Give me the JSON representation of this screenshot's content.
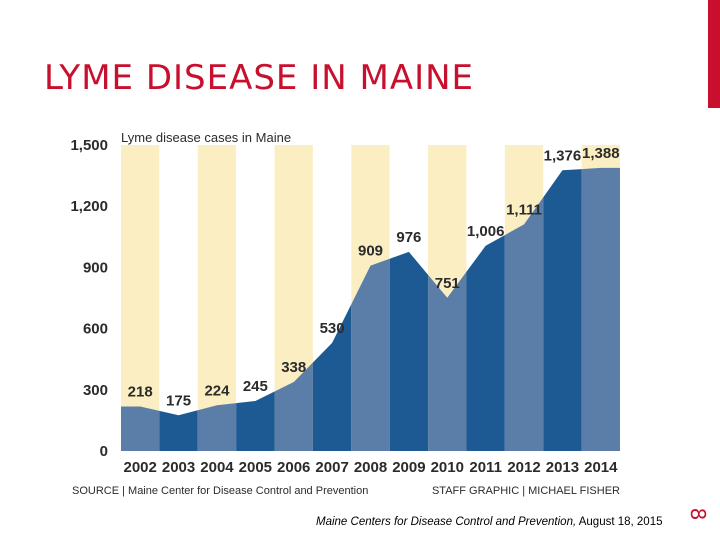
{
  "slide": {
    "title": "LYME DISEASE IN MAINE",
    "caption_source": "Maine Centers for Disease Control and Prevention,",
    "caption_date": " August 18, 2015",
    "slide_number": "8",
    "accent_color": "#c8102e"
  },
  "chart_data": {
    "type": "area",
    "title": "Lyme disease cases in Maine",
    "categories": [
      "2002",
      "2003",
      "2004",
      "2005",
      "2006",
      "2007",
      "2008",
      "2009",
      "2010",
      "2011",
      "2012",
      "2013",
      "2014"
    ],
    "values": [
      218,
      175,
      224,
      245,
      338,
      530,
      909,
      976,
      751,
      1006,
      1111,
      1376,
      1388
    ],
    "value_labels": [
      "218",
      "175",
      "224",
      "245",
      "338",
      "530",
      "909",
      "976",
      "751",
      "1,006",
      "1,111",
      "1,376",
      "1,388"
    ],
    "yticks": [
      "0",
      "300",
      "600",
      "900",
      "1,200",
      "1,500"
    ],
    "ylim": [
      0,
      1500
    ],
    "source": "SOURCE | Maine Center for Disease Control and Prevention",
    "credit": "STAFF GRAPHIC | MICHAEL FISHER",
    "colors": {
      "area_dark": "#1d5a94",
      "area_light": "#5b7ea8",
      "band_yellow": "#fbeec2",
      "text": "#2b2b2b"
    }
  }
}
